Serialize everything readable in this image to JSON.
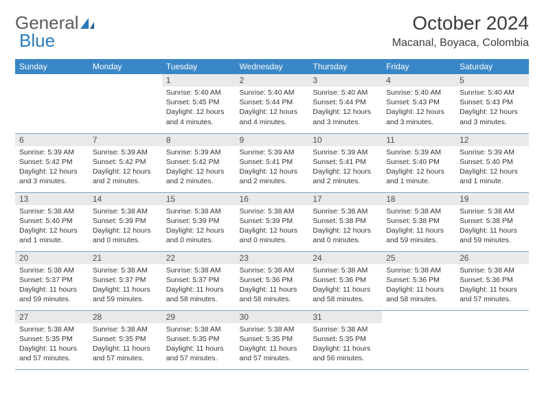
{
  "logo": {
    "text1": "General",
    "text2": "Blue"
  },
  "title": "October 2024",
  "location": "Macanal, Boyaca, Colombia",
  "colors": {
    "header_bg": "#3a87c7",
    "header_fg": "#ffffff",
    "daynum_bg": "#e9e9e9",
    "row_border": "#7aa4c6",
    "logo_gray": "#5a5a5a",
    "logo_blue": "#2a7ab9"
  },
  "weekdays": [
    "Sunday",
    "Monday",
    "Tuesday",
    "Wednesday",
    "Thursday",
    "Friday",
    "Saturday"
  ],
  "weeks": [
    [
      null,
      null,
      {
        "n": "1",
        "sr": "Sunrise: 5:40 AM",
        "ss": "Sunset: 5:45 PM",
        "dl": "Daylight: 12 hours and 4 minutes."
      },
      {
        "n": "2",
        "sr": "Sunrise: 5:40 AM",
        "ss": "Sunset: 5:44 PM",
        "dl": "Daylight: 12 hours and 4 minutes."
      },
      {
        "n": "3",
        "sr": "Sunrise: 5:40 AM",
        "ss": "Sunset: 5:44 PM",
        "dl": "Daylight: 12 hours and 3 minutes."
      },
      {
        "n": "4",
        "sr": "Sunrise: 5:40 AM",
        "ss": "Sunset: 5:43 PM",
        "dl": "Daylight: 12 hours and 3 minutes."
      },
      {
        "n": "5",
        "sr": "Sunrise: 5:40 AM",
        "ss": "Sunset: 5:43 PM",
        "dl": "Daylight: 12 hours and 3 minutes."
      }
    ],
    [
      {
        "n": "6",
        "sr": "Sunrise: 5:39 AM",
        "ss": "Sunset: 5:42 PM",
        "dl": "Daylight: 12 hours and 3 minutes."
      },
      {
        "n": "7",
        "sr": "Sunrise: 5:39 AM",
        "ss": "Sunset: 5:42 PM",
        "dl": "Daylight: 12 hours and 2 minutes."
      },
      {
        "n": "8",
        "sr": "Sunrise: 5:39 AM",
        "ss": "Sunset: 5:42 PM",
        "dl": "Daylight: 12 hours and 2 minutes."
      },
      {
        "n": "9",
        "sr": "Sunrise: 5:39 AM",
        "ss": "Sunset: 5:41 PM",
        "dl": "Daylight: 12 hours and 2 minutes."
      },
      {
        "n": "10",
        "sr": "Sunrise: 5:39 AM",
        "ss": "Sunset: 5:41 PM",
        "dl": "Daylight: 12 hours and 2 minutes."
      },
      {
        "n": "11",
        "sr": "Sunrise: 5:39 AM",
        "ss": "Sunset: 5:40 PM",
        "dl": "Daylight: 12 hours and 1 minute."
      },
      {
        "n": "12",
        "sr": "Sunrise: 5:39 AM",
        "ss": "Sunset: 5:40 PM",
        "dl": "Daylight: 12 hours and 1 minute."
      }
    ],
    [
      {
        "n": "13",
        "sr": "Sunrise: 5:38 AM",
        "ss": "Sunset: 5:40 PM",
        "dl": "Daylight: 12 hours and 1 minute."
      },
      {
        "n": "14",
        "sr": "Sunrise: 5:38 AM",
        "ss": "Sunset: 5:39 PM",
        "dl": "Daylight: 12 hours and 0 minutes."
      },
      {
        "n": "15",
        "sr": "Sunrise: 5:38 AM",
        "ss": "Sunset: 5:39 PM",
        "dl": "Daylight: 12 hours and 0 minutes."
      },
      {
        "n": "16",
        "sr": "Sunrise: 5:38 AM",
        "ss": "Sunset: 5:39 PM",
        "dl": "Daylight: 12 hours and 0 minutes."
      },
      {
        "n": "17",
        "sr": "Sunrise: 5:38 AM",
        "ss": "Sunset: 5:38 PM",
        "dl": "Daylight: 12 hours and 0 minutes."
      },
      {
        "n": "18",
        "sr": "Sunrise: 5:38 AM",
        "ss": "Sunset: 5:38 PM",
        "dl": "Daylight: 11 hours and 59 minutes."
      },
      {
        "n": "19",
        "sr": "Sunrise: 5:38 AM",
        "ss": "Sunset: 5:38 PM",
        "dl": "Daylight: 11 hours and 59 minutes."
      }
    ],
    [
      {
        "n": "20",
        "sr": "Sunrise: 5:38 AM",
        "ss": "Sunset: 5:37 PM",
        "dl": "Daylight: 11 hours and 59 minutes."
      },
      {
        "n": "21",
        "sr": "Sunrise: 5:38 AM",
        "ss": "Sunset: 5:37 PM",
        "dl": "Daylight: 11 hours and 59 minutes."
      },
      {
        "n": "22",
        "sr": "Sunrise: 5:38 AM",
        "ss": "Sunset: 5:37 PM",
        "dl": "Daylight: 11 hours and 58 minutes."
      },
      {
        "n": "23",
        "sr": "Sunrise: 5:38 AM",
        "ss": "Sunset: 5:36 PM",
        "dl": "Daylight: 11 hours and 58 minutes."
      },
      {
        "n": "24",
        "sr": "Sunrise: 5:38 AM",
        "ss": "Sunset: 5:36 PM",
        "dl": "Daylight: 11 hours and 58 minutes."
      },
      {
        "n": "25",
        "sr": "Sunrise: 5:38 AM",
        "ss": "Sunset: 5:36 PM",
        "dl": "Daylight: 11 hours and 58 minutes."
      },
      {
        "n": "26",
        "sr": "Sunrise: 5:38 AM",
        "ss": "Sunset: 5:36 PM",
        "dl": "Daylight: 11 hours and 57 minutes."
      }
    ],
    [
      {
        "n": "27",
        "sr": "Sunrise: 5:38 AM",
        "ss": "Sunset: 5:35 PM",
        "dl": "Daylight: 11 hours and 57 minutes."
      },
      {
        "n": "28",
        "sr": "Sunrise: 5:38 AM",
        "ss": "Sunset: 5:35 PM",
        "dl": "Daylight: 11 hours and 57 minutes."
      },
      {
        "n": "29",
        "sr": "Sunrise: 5:38 AM",
        "ss": "Sunset: 5:35 PM",
        "dl": "Daylight: 11 hours and 57 minutes."
      },
      {
        "n": "30",
        "sr": "Sunrise: 5:38 AM",
        "ss": "Sunset: 5:35 PM",
        "dl": "Daylight: 11 hours and 57 minutes."
      },
      {
        "n": "31",
        "sr": "Sunrise: 5:38 AM",
        "ss": "Sunset: 5:35 PM",
        "dl": "Daylight: 11 hours and 56 minutes."
      },
      null,
      null
    ]
  ]
}
